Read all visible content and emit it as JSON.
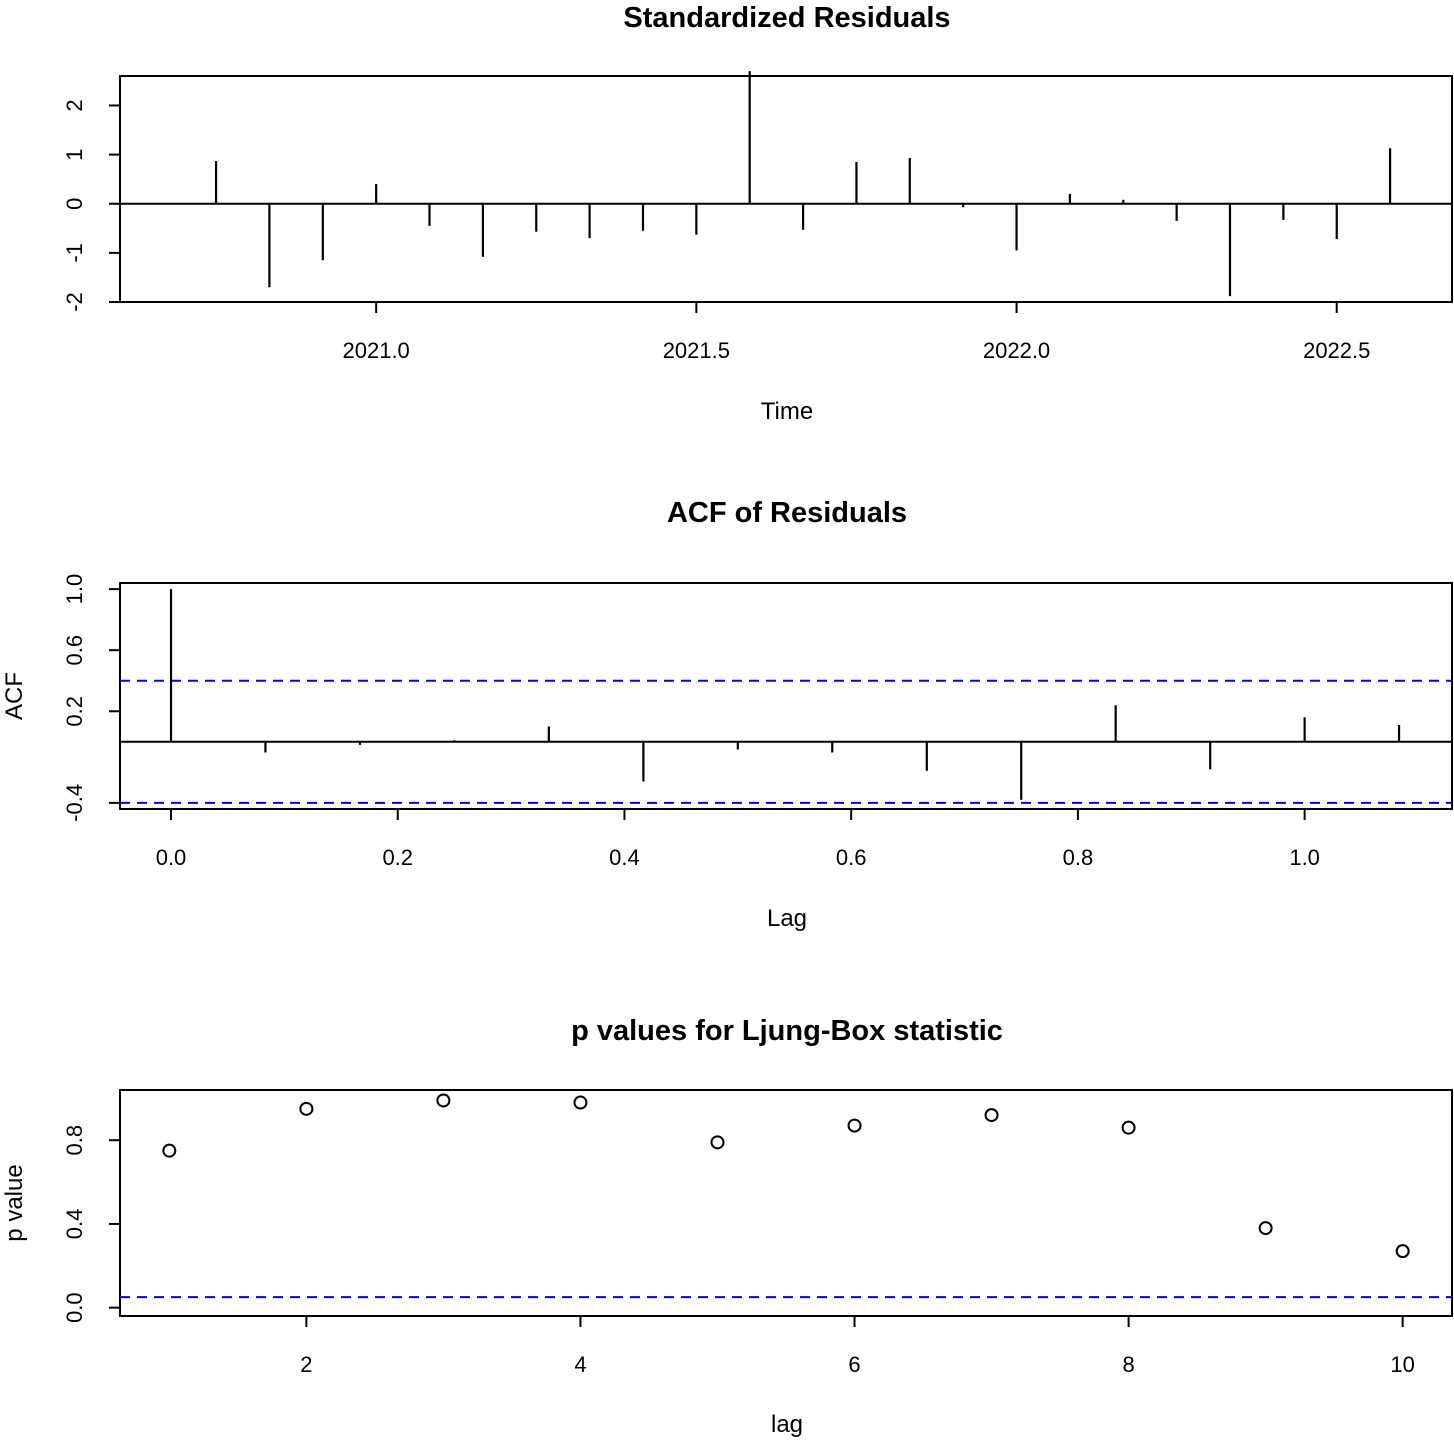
{
  "chart_data": [
    {
      "type": "line",
      "style": "histogram-spikes",
      "title": "Standardized Residuals",
      "xlabel": "Time",
      "ylabel": "",
      "xlim": [
        2020.6,
        2022.68
      ],
      "ylim": [
        -2.0,
        2.6
      ],
      "xticks": [
        2021.0,
        2021.5,
        2022.0,
        2022.5
      ],
      "xtick_labels": [
        "2021.0",
        "2021.5",
        "2022.0",
        "2022.5"
      ],
      "yticks": [
        -2,
        -1,
        0,
        1,
        2
      ],
      "ytick_labels": [
        "-2",
        "-1",
        "0",
        "1",
        "2"
      ],
      "zero_line": 0,
      "x": [
        2020.75,
        2020.8333,
        2020.9167,
        2021.0,
        2021.0833,
        2021.1667,
        2021.25,
        2021.3333,
        2021.4167,
        2021.5,
        2021.5833,
        2021.6667,
        2021.75,
        2021.8333,
        2021.9167,
        2022.0,
        2022.0833,
        2022.1667,
        2022.25,
        2022.3333,
        2022.4167,
        2022.5,
        2022.5833
      ],
      "values": [
        0.87,
        -1.7,
        -1.15,
        0.4,
        -0.45,
        -1.08,
        -0.57,
        -0.7,
        -0.55,
        -0.63,
        2.7,
        -0.53,
        0.85,
        0.93,
        -0.07,
        -0.95,
        0.2,
        0.08,
        -0.35,
        -1.88,
        -0.33,
        -0.72,
        1.13
      ]
    },
    {
      "type": "bar",
      "style": "acf-spikes",
      "title": "ACF of Residuals",
      "xlabel": "Lag",
      "ylabel": "ACF",
      "xlim": [
        -0.045,
        1.13
      ],
      "ylim": [
        -0.44,
        1.04
      ],
      "xticks": [
        0.0,
        0.2,
        0.4,
        0.6,
        0.8,
        1.0
      ],
      "xtick_labels": [
        "0.0",
        "0.2",
        "0.4",
        "0.6",
        "0.8",
        "1.0"
      ],
      "yticks": [
        -0.4,
        0.2,
        0.6,
        1.0
      ],
      "ytick_labels": [
        "-0.4",
        "0.2",
        "0.6",
        "1.0"
      ],
      "zero_line": 0,
      "confidence_bounds": [
        0.4,
        -0.4
      ],
      "x": [
        0.0,
        0.0833,
        0.1667,
        0.25,
        0.3333,
        0.4167,
        0.5,
        0.5833,
        0.6667,
        0.75,
        0.8333,
        0.9167,
        1.0,
        1.0833
      ],
      "values": [
        1.0,
        -0.07,
        -0.02,
        0.01,
        0.1,
        -0.26,
        -0.05,
        -0.07,
        -0.19,
        -0.38,
        0.24,
        -0.18,
        0.16,
        0.11
      ]
    },
    {
      "type": "scatter",
      "title": "p values for Ljung-Box statistic",
      "xlabel": "lag",
      "ylabel": "p value",
      "xlim": [
        0.64,
        10.36
      ],
      "ylim": [
        -0.04,
        1.04
      ],
      "xticks": [
        2,
        4,
        6,
        8,
        10
      ],
      "xtick_labels": [
        "2",
        "4",
        "6",
        "8",
        "10"
      ],
      "yticks": [
        0.0,
        0.4,
        0.8
      ],
      "ytick_labels": [
        "0.0",
        "0.4",
        "0.8"
      ],
      "reference_line": 0.05,
      "x": [
        1,
        2,
        3,
        4,
        5,
        6,
        7,
        8,
        9,
        10
      ],
      "values": [
        0.75,
        0.95,
        0.99,
        0.98,
        0.79,
        0.87,
        0.92,
        0.86,
        0.38,
        0.27
      ]
    }
  ]
}
